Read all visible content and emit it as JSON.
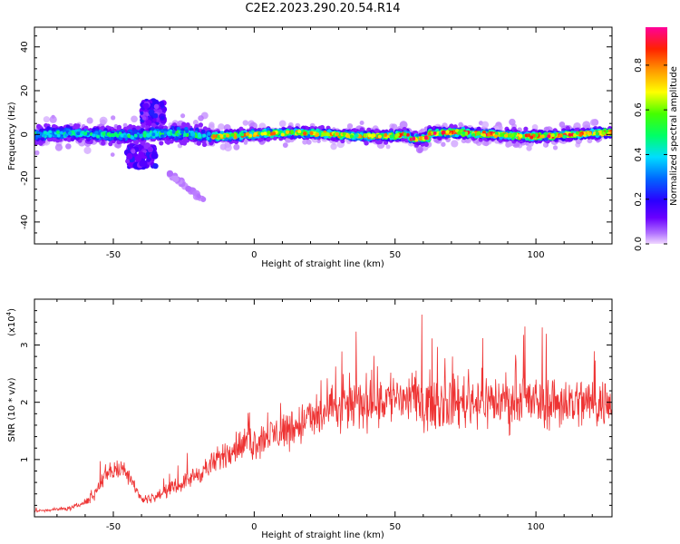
{
  "title": "C2E2.2023.290.20.54.R14",
  "chart_data": [
    {
      "type": "heatmap",
      "xlabel": "Height of straight line (km)",
      "ylabel": "Frequency (Hz)",
      "xlim": [
        -78,
        127
      ],
      "ylim": [
        -50,
        49
      ],
      "xticks": [
        -50,
        0,
        50,
        100
      ],
      "yticks": [
        -40,
        -20,
        0,
        20,
        40
      ],
      "colorbar": {
        "label": "Normalized spectral amplitude",
        "range": [
          0.0,
          0.97
        ],
        "ticks": [
          0.0,
          0.2,
          0.4,
          0.6,
          0.8
        ],
        "tick_labels": [
          "0.0",
          "0.2",
          "0.4",
          "0.6",
          "0.8"
        ]
      },
      "band": {
        "description_values": {
          "center_freq_hz": 0,
          "half_width_hz_typical": 5,
          "extra_features": [
            {
              "x": [
                -45,
                -35
              ],
              "freq_range": [
                -15,
                -5
              ]
            },
            {
              "x": [
                -40,
                -32
              ],
              "freq_range": [
                5,
                15
              ]
            },
            {
              "x": [
                -30,
                -18
              ],
              "freq_range": [
                -30,
                -18
              ]
            }
          ]
        }
      }
    },
    {
      "type": "line",
      "xlabel": "Height of straight line (km)",
      "ylabel": "SNR (10 * v/v)",
      "scale_label": "(x10",
      "scale_exp": "4",
      "xlim": [
        -78,
        127
      ],
      "ylim": [
        0,
        3.8
      ],
      "xticks": [
        -50,
        0,
        50,
        100
      ],
      "yticks": [
        1,
        2,
        3
      ],
      "color": "#ee3333",
      "trend": {
        "x": [
          -78,
          -65,
          -58,
          -52,
          -45,
          -40,
          -35,
          -25,
          -15,
          -8,
          0,
          10,
          20,
          30,
          40,
          50,
          60,
          70,
          80,
          90,
          100,
          110,
          120,
          127
        ],
        "y": [
          0.1,
          0.15,
          0.3,
          0.8,
          0.8,
          0.3,
          0.35,
          0.6,
          0.9,
          1.2,
          1.3,
          1.5,
          1.7,
          1.9,
          2.0,
          2.1,
          2.0,
          2.0,
          2.05,
          2.0,
          2.0,
          2.0,
          2.0,
          1.95
        ]
      }
    }
  ]
}
